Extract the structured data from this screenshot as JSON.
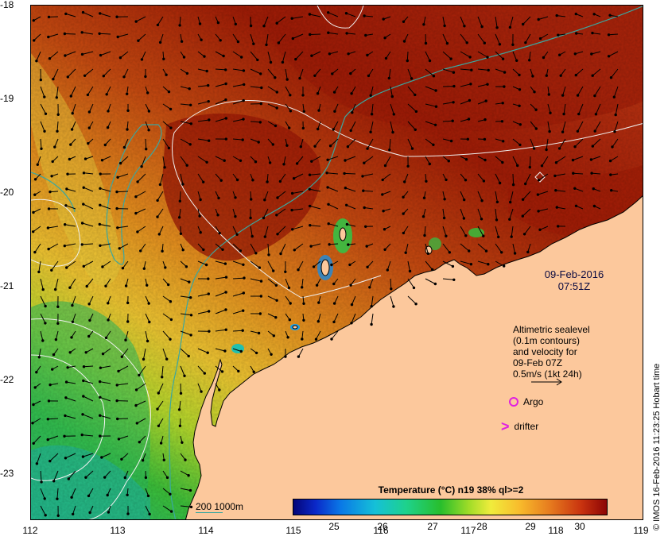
{
  "map": {
    "y_axis_labels": [
      "-18",
      "-19",
      "-20",
      "-21",
      "-22",
      "-23"
    ],
    "x_axis_labels": [
      "112",
      "113",
      "114",
      "115",
      "116",
      "117",
      "118",
      "119"
    ],
    "lon_range": [
      112,
      119
    ],
    "lat_range": [
      -23.5,
      -18
    ],
    "land_color": "#fcc89c",
    "contour_color": "#f0f0f0",
    "isobath_color": "#3aa7a0",
    "arrow_color": "#000000"
  },
  "annotation": {
    "date": "09-Feb-2016",
    "time": "07:51Z"
  },
  "legend": {
    "lines": [
      "Altimetric sealevel",
      "(0.1m contours)",
      "and velocity for",
      "09-Feb 07Z",
      "0.5m/s (1kt 24h)"
    ],
    "argo_label": "Argo",
    "drifter_label": "drifter",
    "marker_color": "#e020e0",
    "depth_label": "200 1000m"
  },
  "colorbar": {
    "title": "Temperature (°C) n19 38% ql>=2",
    "tick_labels": [
      "25",
      "26",
      "27",
      "28",
      "29",
      "30"
    ],
    "range": [
      24,
      30.6
    ]
  },
  "credit": "© IMOS 16-Feb-2016 11:23:25 Hobart time"
}
